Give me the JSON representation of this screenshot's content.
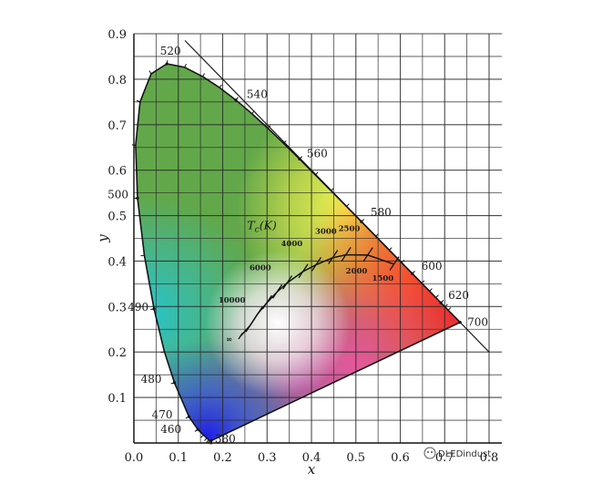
{
  "chart_data": {
    "type": "line",
    "title": "",
    "xlabel": "x",
    "ylabel": "y",
    "xlim": [
      0.0,
      0.8
    ],
    "ylim": [
      0.0,
      0.9
    ],
    "grid": true,
    "x_ticks": [
      "0.0",
      "0.1",
      "0.2",
      "0.3",
      "0.4",
      "0.5",
      "0.6",
      "0.7",
      "0.8"
    ],
    "y_ticks": [
      "0.1",
      "0.2",
      "0.3",
      "0.4",
      "0.5",
      "0.6",
      "0.7",
      "0.8",
      "0.9"
    ],
    "series": [
      {
        "role": "spectral-locus",
        "x": [
          0.1741,
          0.1733,
          0.1714,
          0.1689,
          0.1644,
          0.1566,
          0.144,
          0.1241,
          0.0913,
          0.0687,
          0.0454,
          0.0235,
          0.0082,
          0.0039,
          0.0139,
          0.0389,
          0.0743,
          0.1142,
          0.1547,
          0.1929,
          0.2296,
          0.2658,
          0.3016,
          0.3373,
          0.3731,
          0.4087,
          0.4441,
          0.4788,
          0.5125,
          0.5448,
          0.5752,
          0.6029,
          0.627,
          0.6482,
          0.6658,
          0.6801,
          0.6915,
          0.7006,
          0.7079,
          0.7347
        ],
        "y": [
          0.005,
          0.0048,
          0.0051,
          0.0069,
          0.0109,
          0.0177,
          0.0297,
          0.0578,
          0.1327,
          0.2007,
          0.295,
          0.4127,
          0.5384,
          0.6548,
          0.7502,
          0.812,
          0.8338,
          0.8262,
          0.8059,
          0.7816,
          0.7543,
          0.7243,
          0.6923,
          0.6589,
          0.6245,
          0.5896,
          0.5547,
          0.5202,
          0.4866,
          0.4544,
          0.4242,
          0.3965,
          0.3725,
          0.3514,
          0.334,
          0.3197,
          0.3083,
          0.2993,
          0.292,
          0.2653
        ]
      },
      {
        "role": "planckian-locus",
        "x": [
          0.2399,
          0.2614,
          0.2788,
          0.2992,
          0.3221,
          0.3447,
          0.3805,
          0.4101,
          0.4476,
          0.4772,
          0.5265,
          0.5856
        ],
        "y": [
          0.2347,
          0.2578,
          0.2838,
          0.3081,
          0.3318,
          0.3516,
          0.3768,
          0.3917,
          0.4074,
          0.4137,
          0.4133,
          0.3932
        ]
      }
    ],
    "annotations": {
      "wavelengths": [
        {
          "label": "380",
          "x": 0.1741,
          "y": 0.005
        },
        {
          "label": "460",
          "x": 0.144,
          "y": 0.0297
        },
        {
          "label": "470",
          "x": 0.1241,
          "y": 0.0578
        },
        {
          "label": "480",
          "x": 0.0913,
          "y": 0.1327
        },
        {
          "label": "490",
          "x": 0.0454,
          "y": 0.295
        },
        {
          "label": "500",
          "x": 0.0082,
          "y": 0.5384
        },
        {
          "label": "520",
          "x": 0.0743,
          "y": 0.8338
        },
        {
          "label": "540",
          "x": 0.2296,
          "y": 0.7543
        },
        {
          "label": "560",
          "x": 0.3731,
          "y": 0.6245
        },
        {
          "label": "580",
          "x": 0.5125,
          "y": 0.4866
        },
        {
          "label": "600",
          "x": 0.627,
          "y": 0.3725
        },
        {
          "label": "620",
          "x": 0.6915,
          "y": 0.3083
        },
        {
          "label": "700",
          "x": 0.7347,
          "y": 0.2653
        }
      ],
      "color_temperature_title": "T",
      "color_temperature_subscript": "c",
      "color_temperature_unit": "(K)",
      "color_temperatures": [
        {
          "label": "∞",
          "x": 0.2399,
          "y": 0.2347
        },
        {
          "label": "10000",
          "x": 0.2807,
          "y": 0.2883
        },
        {
          "label": "6000",
          "x": 0.3221,
          "y": 0.3318
        },
        {
          "label": "4000",
          "x": 0.3805,
          "y": 0.3768
        },
        {
          "label": "3000",
          "x": 0.4369,
          "y": 0.4041
        },
        {
          "label": "2500",
          "x": 0.4772,
          "y": 0.4137
        },
        {
          "label": "2000",
          "x": 0.5265,
          "y": 0.4133
        },
        {
          "label": "1500",
          "x": 0.5856,
          "y": 0.3932
        }
      ]
    }
  },
  "watermark": {
    "text": "DLEDindust"
  }
}
